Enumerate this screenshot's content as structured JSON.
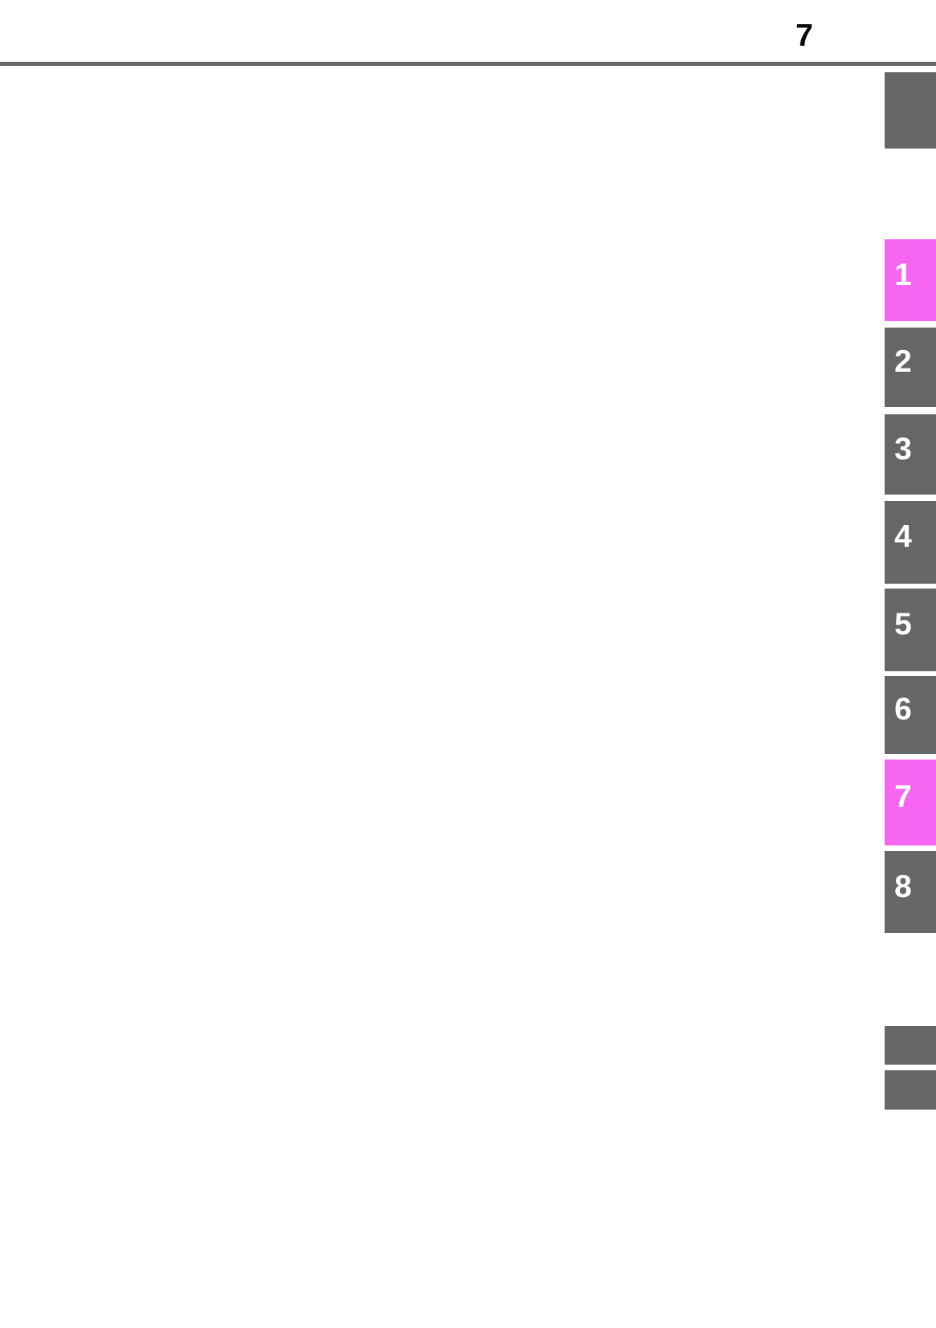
{
  "page": {
    "number": "7"
  },
  "colors": {
    "page_background": "#ffffff",
    "header_rule": "#666666",
    "page_number_text": "#0a0a0a",
    "tab_gray": "#666666",
    "tab_highlight_pink": "#f766f2",
    "tab_number_text": "#ffffff"
  },
  "section_tabs": {
    "items": [
      {
        "label": "1",
        "highlighted": true
      },
      {
        "label": "2",
        "highlighted": false
      },
      {
        "label": "3",
        "highlighted": false
      },
      {
        "label": "4",
        "highlighted": false
      },
      {
        "label": "5",
        "highlighted": false
      },
      {
        "label": "6",
        "highlighted": false
      },
      {
        "label": "7",
        "highlighted": true
      },
      {
        "label": "8",
        "highlighted": false
      }
    ]
  }
}
